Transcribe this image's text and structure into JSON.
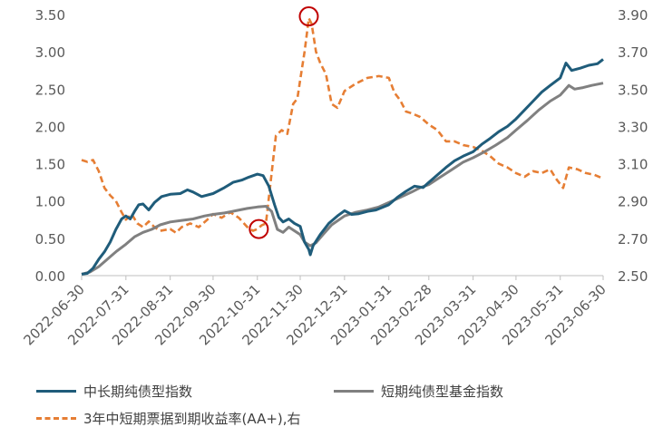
{
  "chart_data": {
    "type": "line",
    "title": "",
    "x_tick_labels": [
      "2022-06-30",
      "2022-07-31",
      "2022-08-31",
      "2022-09-30",
      "2022-10-31",
      "2022-11-30",
      "2022-12-31",
      "2023-01-31",
      "2023-02-28",
      "2023-03-31",
      "2023-04-30",
      "2023-05-31",
      "2023-06-30"
    ],
    "left_axis": {
      "min": 0,
      "max": 3.5,
      "tick_labels": [
        "0.00",
        "0.50",
        "1.00",
        "1.50",
        "2.00",
        "2.50",
        "3.00",
        "3.50"
      ]
    },
    "right_axis": {
      "min": 2.5,
      "max": 3.9,
      "tick_labels": [
        "2.50",
        "2.70",
        "2.90",
        "3.10",
        "3.30",
        "3.50",
        "3.70",
        "3.90"
      ]
    },
    "grid": false,
    "legend_position": "bottom",
    "series": [
      {
        "name": "中长期纯债型指数",
        "axis": "left",
        "color": "#1f5c7a",
        "style": "solid",
        "points": [
          [
            "2022-06-30",
            0.02
          ],
          [
            "2022-07-04",
            0.03
          ],
          [
            "2022-07-08",
            0.1
          ],
          [
            "2022-07-12",
            0.22
          ],
          [
            "2022-07-16",
            0.32
          ],
          [
            "2022-07-20",
            0.45
          ],
          [
            "2022-07-24",
            0.62
          ],
          [
            "2022-07-28",
            0.76
          ],
          [
            "2022-07-31",
            0.8
          ],
          [
            "2022-08-03",
            0.76
          ],
          [
            "2022-08-06",
            0.86
          ],
          [
            "2022-08-09",
            0.95
          ],
          [
            "2022-08-12",
            0.96
          ],
          [
            "2022-08-16",
            0.88
          ],
          [
            "2022-08-20",
            0.98
          ],
          [
            "2022-08-25",
            1.06
          ],
          [
            "2022-08-31",
            1.09
          ],
          [
            "2022-09-07",
            1.1
          ],
          [
            "2022-09-12",
            1.15
          ],
          [
            "2022-09-16",
            1.12
          ],
          [
            "2022-09-22",
            1.06
          ],
          [
            "2022-09-30",
            1.1
          ],
          [
            "2022-10-08",
            1.18
          ],
          [
            "2022-10-14",
            1.25
          ],
          [
            "2022-10-20",
            1.28
          ],
          [
            "2022-10-25",
            1.32
          ],
          [
            "2022-10-31",
            1.36
          ],
          [
            "2022-11-04",
            1.34
          ],
          [
            "2022-11-08",
            1.2
          ],
          [
            "2022-11-12",
            0.95
          ],
          [
            "2022-11-15",
            0.78
          ],
          [
            "2022-11-18",
            0.72
          ],
          [
            "2022-11-22",
            0.76
          ],
          [
            "2022-11-26",
            0.7
          ],
          [
            "2022-11-30",
            0.66
          ],
          [
            "2022-12-03",
            0.45
          ],
          [
            "2022-12-06",
            0.35
          ],
          [
            "2022-12-07",
            0.28
          ],
          [
            "2022-12-09",
            0.4
          ],
          [
            "2022-12-14",
            0.55
          ],
          [
            "2022-12-20",
            0.7
          ],
          [
            "2022-12-26",
            0.8
          ],
          [
            "2022-12-31",
            0.87
          ],
          [
            "2023-01-05",
            0.82
          ],
          [
            "2023-01-10",
            0.83
          ],
          [
            "2023-01-16",
            0.86
          ],
          [
            "2023-01-22",
            0.88
          ],
          [
            "2023-01-31",
            0.95
          ],
          [
            "2023-02-06",
            1.05
          ],
          [
            "2023-02-12",
            1.13
          ],
          [
            "2023-02-18",
            1.2
          ],
          [
            "2023-02-24",
            1.18
          ],
          [
            "2023-02-28",
            1.25
          ],
          [
            "2023-03-06",
            1.35
          ],
          [
            "2023-03-12",
            1.45
          ],
          [
            "2023-03-18",
            1.54
          ],
          [
            "2023-03-24",
            1.6
          ],
          [
            "2023-03-31",
            1.66
          ],
          [
            "2023-04-06",
            1.76
          ],
          [
            "2023-04-12",
            1.84
          ],
          [
            "2023-04-18",
            1.93
          ],
          [
            "2023-04-24",
            2.0
          ],
          [
            "2023-04-30",
            2.1
          ],
          [
            "2023-05-06",
            2.22
          ],
          [
            "2023-05-12",
            2.34
          ],
          [
            "2023-05-18",
            2.46
          ],
          [
            "2023-05-24",
            2.55
          ],
          [
            "2023-05-31",
            2.65
          ],
          [
            "2023-06-04",
            2.85
          ],
          [
            "2023-06-08",
            2.75
          ],
          [
            "2023-06-14",
            2.78
          ],
          [
            "2023-06-20",
            2.82
          ],
          [
            "2023-06-26",
            2.84
          ],
          [
            "2023-06-30",
            2.9
          ]
        ]
      },
      {
        "name": "短期纯债型基金指数",
        "axis": "left",
        "color": "#808080",
        "style": "solid",
        "points": [
          [
            "2022-06-30",
            0.02
          ],
          [
            "2022-07-06",
            0.05
          ],
          [
            "2022-07-12",
            0.12
          ],
          [
            "2022-07-18",
            0.22
          ],
          [
            "2022-07-24",
            0.32
          ],
          [
            "2022-07-31",
            0.42
          ],
          [
            "2022-08-06",
            0.52
          ],
          [
            "2022-08-12",
            0.58
          ],
          [
            "2022-08-18",
            0.62
          ],
          [
            "2022-08-24",
            0.68
          ],
          [
            "2022-08-31",
            0.72
          ],
          [
            "2022-09-08",
            0.74
          ],
          [
            "2022-09-16",
            0.76
          ],
          [
            "2022-09-24",
            0.8
          ],
          [
            "2022-09-30",
            0.82
          ],
          [
            "2022-10-08",
            0.84
          ],
          [
            "2022-10-16",
            0.87
          ],
          [
            "2022-10-24",
            0.9
          ],
          [
            "2022-10-31",
            0.92
          ],
          [
            "2022-11-06",
            0.93
          ],
          [
            "2022-11-10",
            0.86
          ],
          [
            "2022-11-14",
            0.62
          ],
          [
            "2022-11-18",
            0.58
          ],
          [
            "2022-11-22",
            0.65
          ],
          [
            "2022-11-26",
            0.6
          ],
          [
            "2022-11-30",
            0.55
          ],
          [
            "2022-12-03",
            0.45
          ],
          [
            "2022-12-07",
            0.4
          ],
          [
            "2022-12-11",
            0.44
          ],
          [
            "2022-12-16",
            0.55
          ],
          [
            "2022-12-22",
            0.68
          ],
          [
            "2022-12-31",
            0.8
          ],
          [
            "2023-01-08",
            0.85
          ],
          [
            "2023-01-16",
            0.88
          ],
          [
            "2023-01-24",
            0.92
          ],
          [
            "2023-01-31",
            0.98
          ],
          [
            "2023-02-08",
            1.05
          ],
          [
            "2023-02-16",
            1.12
          ],
          [
            "2023-02-22",
            1.18
          ],
          [
            "2023-02-28",
            1.22
          ],
          [
            "2023-03-08",
            1.32
          ],
          [
            "2023-03-16",
            1.42
          ],
          [
            "2023-03-24",
            1.52
          ],
          [
            "2023-03-31",
            1.58
          ],
          [
            "2023-04-08",
            1.66
          ],
          [
            "2023-04-16",
            1.75
          ],
          [
            "2023-04-24",
            1.85
          ],
          [
            "2023-04-30",
            1.95
          ],
          [
            "2023-05-08",
            2.08
          ],
          [
            "2023-05-16",
            2.22
          ],
          [
            "2023-05-24",
            2.34
          ],
          [
            "2023-05-31",
            2.42
          ],
          [
            "2023-06-06",
            2.55
          ],
          [
            "2023-06-10",
            2.5
          ],
          [
            "2023-06-16",
            2.52
          ],
          [
            "2023-06-22",
            2.55
          ],
          [
            "2023-06-30",
            2.58
          ]
        ]
      },
      {
        "name": "3年中短期票据到期收益率(AA+),右",
        "axis": "right",
        "color": "#e67e34",
        "style": "dashed",
        "points": [
          [
            "2022-06-30",
            3.12
          ],
          [
            "2022-07-04",
            3.11
          ],
          [
            "2022-07-08",
            3.12
          ],
          [
            "2022-07-12",
            3.06
          ],
          [
            "2022-07-16",
            2.97
          ],
          [
            "2022-07-20",
            2.93
          ],
          [
            "2022-07-24",
            2.9
          ],
          [
            "2022-07-28",
            2.84
          ],
          [
            "2022-07-31",
            2.8
          ],
          [
            "2022-08-04",
            2.83
          ],
          [
            "2022-08-08",
            2.78
          ],
          [
            "2022-08-12",
            2.76
          ],
          [
            "2022-08-16",
            2.79
          ],
          [
            "2022-08-20",
            2.76
          ],
          [
            "2022-08-24",
            2.74
          ],
          [
            "2022-08-31",
            2.75
          ],
          [
            "2022-09-04",
            2.73
          ],
          [
            "2022-09-08",
            2.76
          ],
          [
            "2022-09-14",
            2.78
          ],
          [
            "2022-09-20",
            2.76
          ],
          [
            "2022-09-26",
            2.8
          ],
          [
            "2022-09-30",
            2.83
          ],
          [
            "2022-10-06",
            2.81
          ],
          [
            "2022-10-12",
            2.84
          ],
          [
            "2022-10-18",
            2.81
          ],
          [
            "2022-10-24",
            2.76
          ],
          [
            "2022-10-28",
            2.74
          ],
          [
            "2022-10-31",
            2.75
          ],
          [
            "2022-11-03",
            2.77
          ],
          [
            "2022-11-06",
            2.78
          ],
          [
            "2022-11-10",
            3.05
          ],
          [
            "2022-11-13",
            3.25
          ],
          [
            "2022-11-17",
            3.28
          ],
          [
            "2022-11-21",
            3.26
          ],
          [
            "2022-11-25",
            3.42
          ],
          [
            "2022-11-28",
            3.45
          ],
          [
            "2022-11-30",
            3.55
          ],
          [
            "2022-12-03",
            3.7
          ],
          [
            "2022-12-06",
            3.88
          ],
          [
            "2022-12-08",
            3.85
          ],
          [
            "2022-12-11",
            3.7
          ],
          [
            "2022-12-14",
            3.64
          ],
          [
            "2022-12-18",
            3.58
          ],
          [
            "2022-12-22",
            3.42
          ],
          [
            "2022-12-26",
            3.4
          ],
          [
            "2022-12-31",
            3.49
          ],
          [
            "2023-01-08",
            3.53
          ],
          [
            "2023-01-16",
            3.56
          ],
          [
            "2023-01-24",
            3.57
          ],
          [
            "2023-01-31",
            3.56
          ],
          [
            "2023-02-04",
            3.48
          ],
          [
            "2023-02-08",
            3.44
          ],
          [
            "2023-02-12",
            3.38
          ],
          [
            "2023-02-16",
            3.37
          ],
          [
            "2023-02-22",
            3.35
          ],
          [
            "2023-02-28",
            3.31
          ],
          [
            "2023-03-06",
            3.28
          ],
          [
            "2023-03-12",
            3.22
          ],
          [
            "2023-03-18",
            3.22
          ],
          [
            "2023-03-24",
            3.2
          ],
          [
            "2023-03-31",
            3.19
          ],
          [
            "2023-04-06",
            3.17
          ],
          [
            "2023-04-12",
            3.14
          ],
          [
            "2023-04-18",
            3.1
          ],
          [
            "2023-04-24",
            3.08
          ],
          [
            "2023-04-30",
            3.05
          ],
          [
            "2023-05-06",
            3.03
          ],
          [
            "2023-05-12",
            3.06
          ],
          [
            "2023-05-18",
            3.05
          ],
          [
            "2023-05-24",
            3.07
          ],
          [
            "2023-05-28",
            3.02
          ],
          [
            "2023-06-02",
            2.97
          ],
          [
            "2023-06-06",
            3.08
          ],
          [
            "2023-06-12",
            3.07
          ],
          [
            "2023-06-18",
            3.05
          ],
          [
            "2023-06-24",
            3.04
          ],
          [
            "2023-06-30",
            3.02
          ]
        ]
      }
    ],
    "annotations": [
      {
        "type": "circle",
        "color": "#c00000",
        "x": "2022-11-01",
        "axis": "right",
        "y": 2.75
      },
      {
        "type": "circle",
        "color": "#c00000",
        "x": "2022-12-06",
        "axis": "right",
        "y": 3.89
      }
    ]
  }
}
